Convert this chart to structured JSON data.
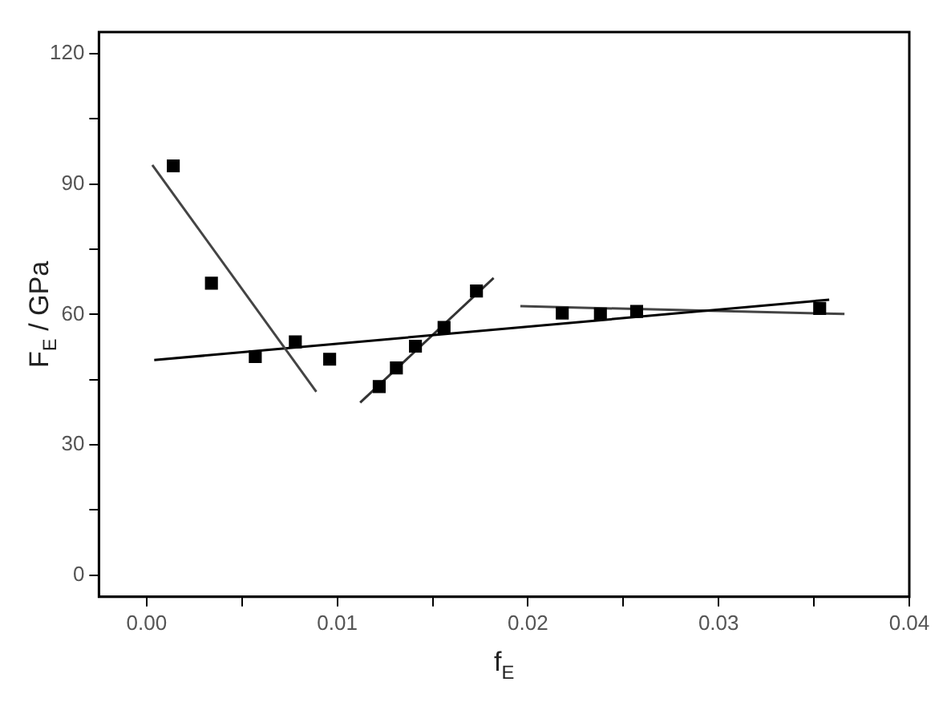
{
  "chart_data": {
    "type": "scatter",
    "xlabel": "f$_{E}$",
    "ylabel": "F$_{E}$ / GPa",
    "xlim": [
      -0.0025,
      0.04
    ],
    "ylim": [
      -5,
      125
    ],
    "xticks": [
      {
        "value": 0,
        "label": "0.00"
      },
      {
        "value": 0.005,
        "label": null
      },
      {
        "value": 0.01,
        "label": "0.01"
      },
      {
        "value": 0.015,
        "label": null
      },
      {
        "value": 0.02,
        "label": "0.02"
      },
      {
        "value": 0.025,
        "label": null
      },
      {
        "value": 0.03,
        "label": "0.03"
      },
      {
        "value": 0.035,
        "label": null
      },
      {
        "value": 0.04,
        "label": "0.04"
      }
    ],
    "yticks": [
      0,
      {
        "value": 15,
        "label": null
      },
      30,
      {
        "value": 45,
        "label": null
      },
      60,
      {
        "value": 75,
        "label": null
      },
      90,
      {
        "value": 105,
        "label": null
      },
      120
    ],
    "grid": false,
    "legend": false,
    "series": [
      {
        "marker": "square",
        "color": "#000000",
        "x": [
          0.0014,
          0.0034,
          0.0057,
          0.0078,
          0.0096,
          0.0122,
          0.0131,
          0.0141,
          0.0156,
          0.0173,
          0.0218,
          0.0238,
          0.0257,
          0.0353
        ],
        "values": [
          94.2,
          67.2,
          50.3,
          53.7,
          49.7,
          43.4,
          47.7,
          52.7,
          57.0,
          65.4,
          60.3,
          60.1,
          60.7,
          61.4
        ]
      },
      {
        "type": "line",
        "color": "#444444",
        "x": [
          0.0003,
          0.0089
        ],
        "values": [
          94.4,
          42.2
        ],
        "marker": "none"
      },
      {
        "type": "line",
        "color": "#000000",
        "x": [
          0.0004,
          0.0358
        ],
        "values": [
          49.5,
          63.4
        ],
        "marker": "none"
      },
      {
        "type": "line",
        "color": "#333333",
        "x": [
          0.0112,
          0.0182
        ],
        "values": [
          39.7,
          68.4
        ],
        "marker": "none"
      },
      {
        "type": "line",
        "color": "#444444",
        "x": [
          0.0196,
          0.0366
        ],
        "values": [
          61.9,
          60.1
        ],
        "marker": "none"
      }
    ]
  }
}
